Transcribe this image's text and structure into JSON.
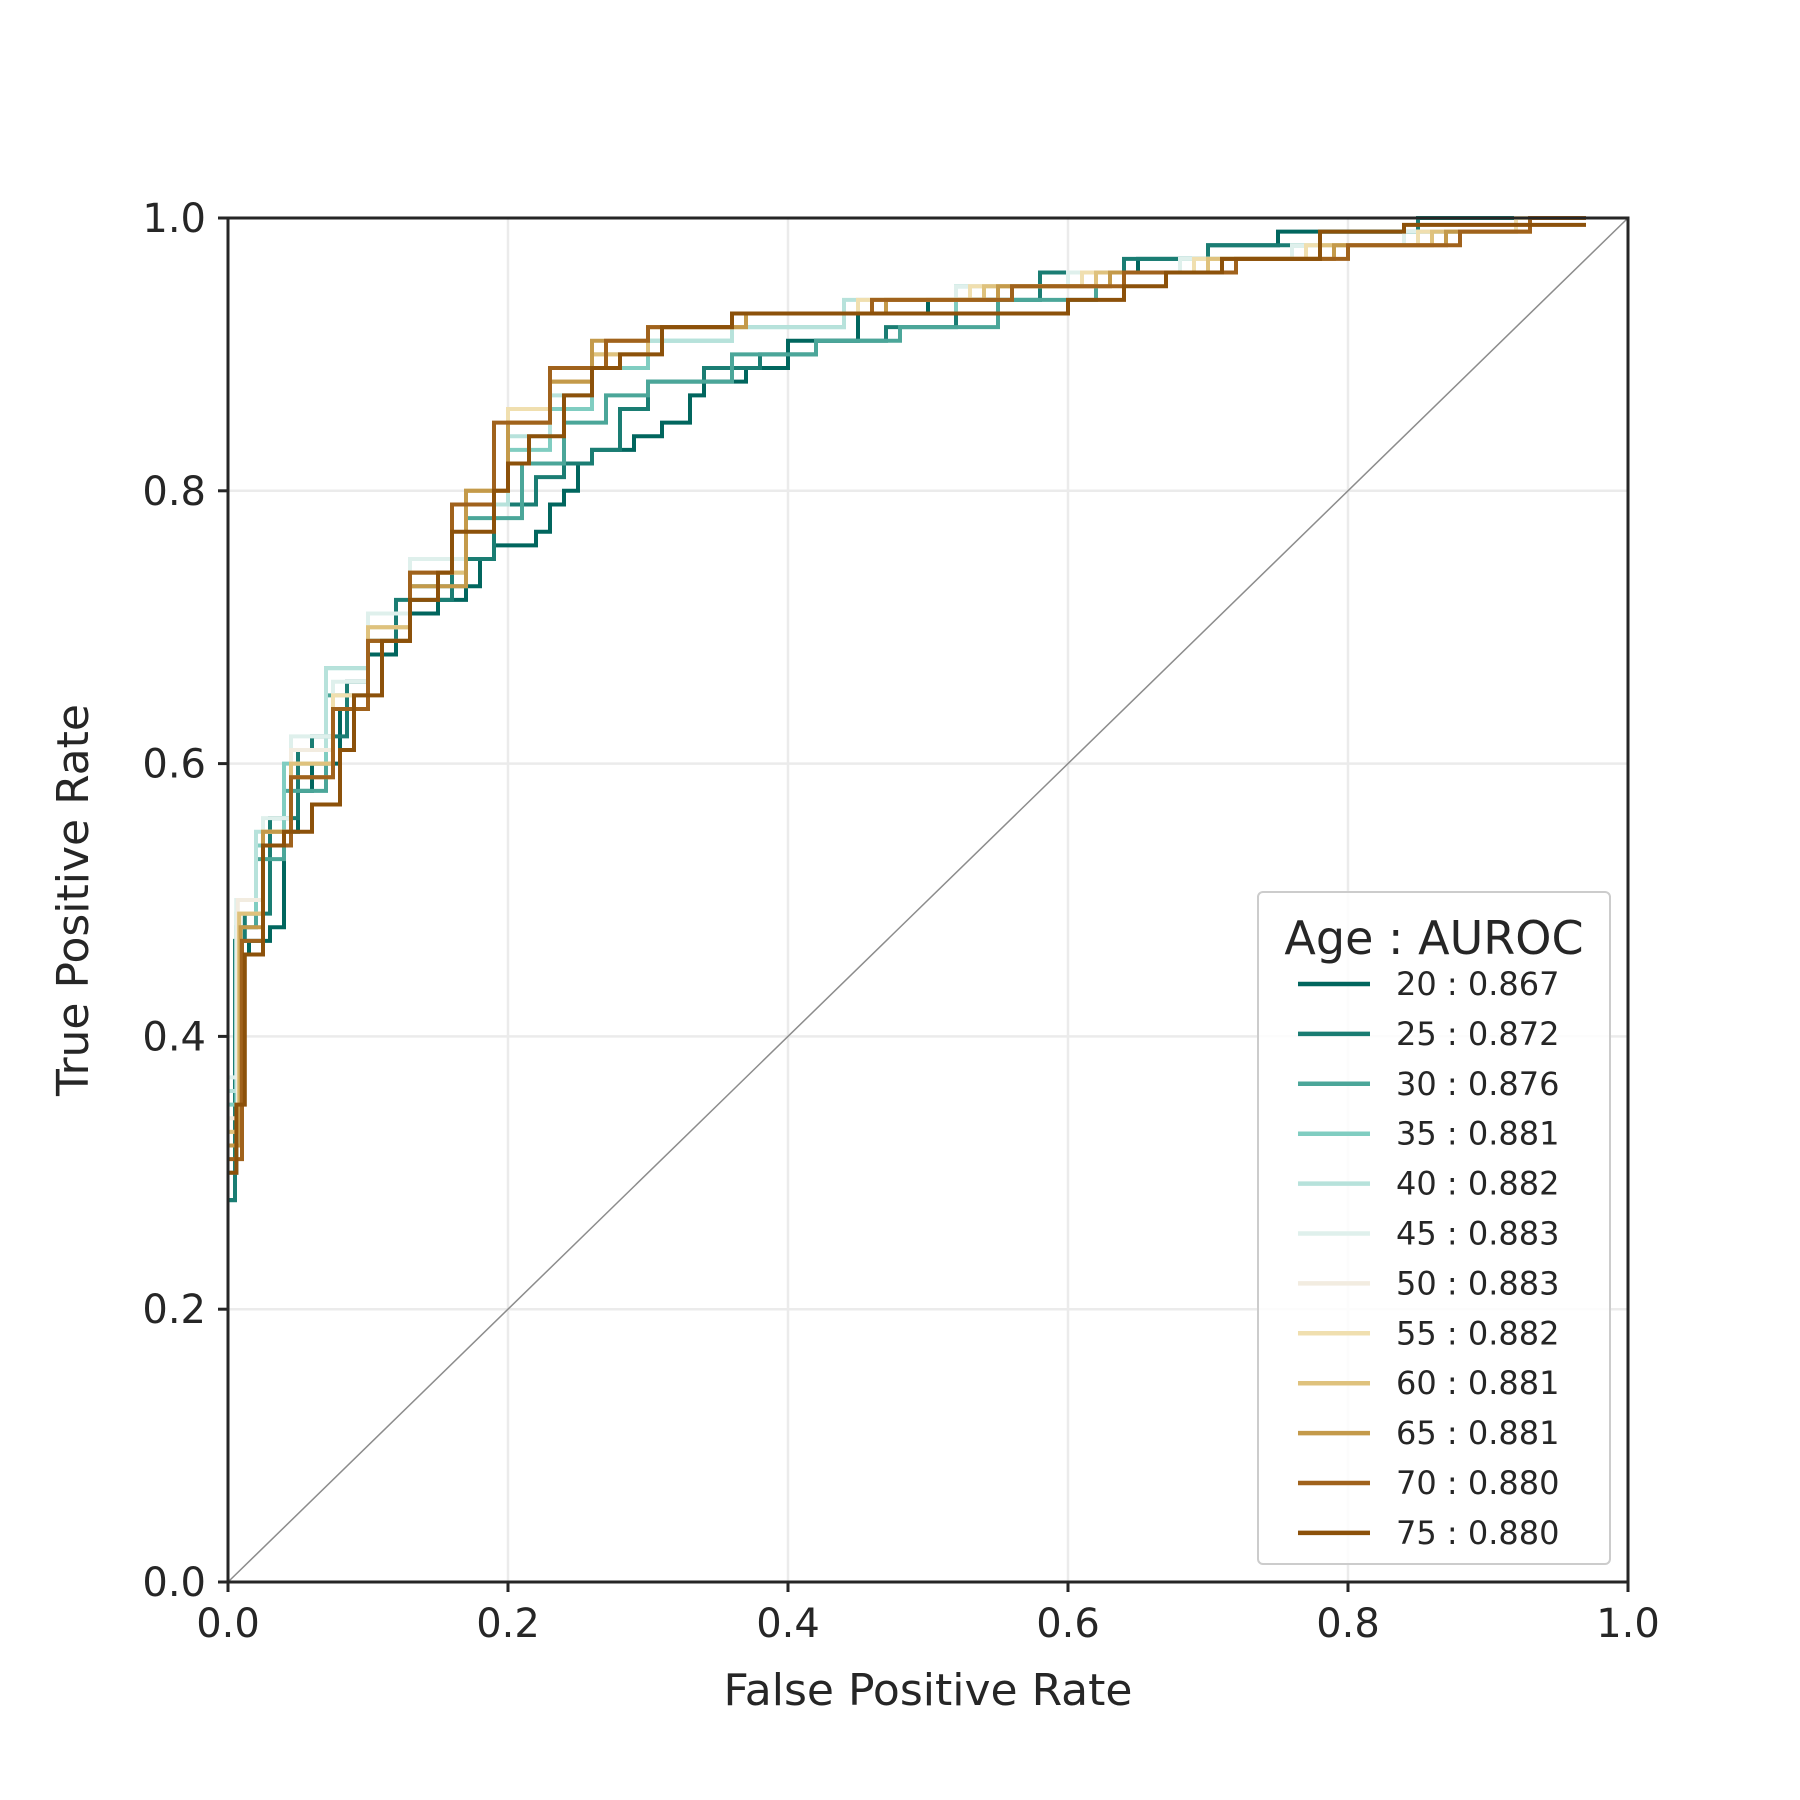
{
  "chart_data": {
    "type": "line",
    "title": "",
    "xlabel": "False Positive Rate",
    "ylabel": "True Positive Rate",
    "xlim": [
      0.0,
      1.0
    ],
    "ylim": [
      0.0,
      1.0
    ],
    "xticks": [
      "0.0",
      "0.2",
      "0.4",
      "0.6",
      "0.8",
      "1.0"
    ],
    "yticks": [
      "0.0",
      "0.2",
      "0.4",
      "0.6",
      "0.8",
      "1.0"
    ],
    "grid": true,
    "legend": {
      "title": "Age : AUROC",
      "placement": "lower-right"
    },
    "diagonal_reference": {
      "x": [
        0.0,
        1.0
      ],
      "y": [
        0.0,
        1.0
      ],
      "color": "#8c8c8c"
    },
    "series": [
      {
        "name": "20 : 0.867",
        "color": "#01665e",
        "x": [
          0,
          0.005,
          0.005,
          0.015,
          0.015,
          0.03,
          0.03,
          0.04,
          0.04,
          0.05,
          0.05,
          0.06,
          0.06,
          0.08,
          0.08,
          0.1,
          0.1,
          0.12,
          0.12,
          0.15,
          0.15,
          0.17,
          0.17,
          0.18,
          0.18,
          0.19,
          0.19,
          0.22,
          0.22,
          0.23,
          0.23,
          0.24,
          0.24,
          0.25,
          0.25,
          0.26,
          0.26,
          0.29,
          0.29,
          0.31,
          0.31,
          0.33,
          0.33,
          0.34,
          0.34,
          0.37,
          0.37,
          0.4,
          0.4,
          0.45,
          0.45,
          0.5,
          0.5,
          0.55,
          0.55,
          0.6,
          0.6,
          0.65,
          0.65,
          0.7,
          0.7,
          0.75,
          0.75,
          0.85,
          0.85,
          0.92,
          0.92,
          0.97
        ],
        "y": [
          0.28,
          0.28,
          0.46,
          0.46,
          0.47,
          0.47,
          0.48,
          0.48,
          0.55,
          0.55,
          0.58,
          0.58,
          0.6,
          0.6,
          0.64,
          0.64,
          0.68,
          0.68,
          0.71,
          0.71,
          0.72,
          0.72,
          0.73,
          0.73,
          0.75,
          0.75,
          0.76,
          0.76,
          0.77,
          0.77,
          0.79,
          0.79,
          0.8,
          0.8,
          0.82,
          0.82,
          0.83,
          0.83,
          0.84,
          0.84,
          0.85,
          0.85,
          0.87,
          0.87,
          0.88,
          0.88,
          0.89,
          0.89,
          0.91,
          0.91,
          0.93,
          0.93,
          0.94,
          0.94,
          0.95,
          0.95,
          0.96,
          0.96,
          0.97,
          0.97,
          0.98,
          0.98,
          0.99,
          0.99,
          1.0,
          1.0,
          1.0,
          1.0
        ]
      },
      {
        "name": "25 : 0.872",
        "color": "#1a7d73",
        "x": [
          0,
          0.005,
          0.005,
          0.012,
          0.012,
          0.03,
          0.03,
          0.05,
          0.05,
          0.06,
          0.06,
          0.085,
          0.085,
          0.1,
          0.1,
          0.12,
          0.12,
          0.16,
          0.16,
          0.19,
          0.19,
          0.22,
          0.22,
          0.24,
          0.24,
          0.26,
          0.26,
          0.28,
          0.28,
          0.3,
          0.3,
          0.34,
          0.34,
          0.38,
          0.38,
          0.42,
          0.42,
          0.47,
          0.47,
          0.52,
          0.52,
          0.58,
          0.58,
          0.64,
          0.64,
          0.7,
          0.7,
          0.78,
          0.78,
          0.85,
          0.85,
          0.92,
          0.92,
          0.97
        ],
        "y": [
          0.28,
          0.28,
          0.47,
          0.47,
          0.49,
          0.49,
          0.56,
          0.56,
          0.61,
          0.61,
          0.62,
          0.62,
          0.66,
          0.66,
          0.69,
          0.69,
          0.72,
          0.72,
          0.75,
          0.75,
          0.79,
          0.79,
          0.81,
          0.81,
          0.82,
          0.82,
          0.83,
          0.83,
          0.86,
          0.86,
          0.88,
          0.88,
          0.89,
          0.89,
          0.9,
          0.9,
          0.91,
          0.91,
          0.92,
          0.92,
          0.94,
          0.94,
          0.96,
          0.96,
          0.97,
          0.97,
          0.98,
          0.98,
          0.99,
          0.99,
          1.0,
          1.0,
          1.0,
          1.0
        ]
      },
      {
        "name": "30 : 0.876",
        "color": "#4ba699",
        "x": [
          0,
          0.006,
          0.006,
          0.02,
          0.02,
          0.04,
          0.04,
          0.07,
          0.07,
          0.1,
          0.1,
          0.13,
          0.13,
          0.17,
          0.17,
          0.21,
          0.21,
          0.24,
          0.24,
          0.27,
          0.27,
          0.3,
          0.3,
          0.36,
          0.36,
          0.42,
          0.42,
          0.48,
          0.48,
          0.55,
          0.55,
          0.62,
          0.62,
          0.68,
          0.68,
          0.76,
          0.76,
          0.84,
          0.84,
          0.92,
          0.92,
          0.97
        ],
        "y": [
          0.3,
          0.3,
          0.48,
          0.48,
          0.53,
          0.53,
          0.58,
          0.58,
          0.65,
          0.65,
          0.69,
          0.69,
          0.73,
          0.73,
          0.78,
          0.78,
          0.82,
          0.82,
          0.85,
          0.85,
          0.87,
          0.87,
          0.88,
          0.88,
          0.9,
          0.9,
          0.91,
          0.91,
          0.92,
          0.92,
          0.94,
          0.94,
          0.96,
          0.96,
          0.97,
          0.97,
          0.98,
          0.98,
          0.99,
          0.99,
          1.0,
          1.0
        ]
      },
      {
        "name": "35 : 0.881",
        "color": "#80cdc1",
        "x": [
          0,
          0.006,
          0.006,
          0.02,
          0.02,
          0.04,
          0.04,
          0.07,
          0.07,
          0.1,
          0.1,
          0.13,
          0.13,
          0.17,
          0.17,
          0.2,
          0.2,
          0.23,
          0.23,
          0.26,
          0.26,
          0.3,
          0.3,
          0.36,
          0.36,
          0.44,
          0.44,
          0.52,
          0.52,
          0.6,
          0.6,
          0.68,
          0.68,
          0.76,
          0.76,
          0.84,
          0.84,
          0.92,
          0.92,
          0.97
        ],
        "y": [
          0.35,
          0.35,
          0.49,
          0.49,
          0.54,
          0.54,
          0.6,
          0.6,
          0.67,
          0.67,
          0.7,
          0.7,
          0.74,
          0.74,
          0.79,
          0.79,
          0.83,
          0.83,
          0.86,
          0.86,
          0.89,
          0.89,
          0.91,
          0.91,
          0.92,
          0.92,
          0.93,
          0.93,
          0.95,
          0.95,
          0.96,
          0.96,
          0.97,
          0.97,
          0.98,
          0.98,
          0.99,
          0.99,
          1.0,
          1.0
        ]
      },
      {
        "name": "40 : 0.882",
        "color": "#b7e2db",
        "x": [
          0,
          0.006,
          0.006,
          0.02,
          0.02,
          0.045,
          0.045,
          0.07,
          0.07,
          0.1,
          0.1,
          0.13,
          0.13,
          0.16,
          0.16,
          0.2,
          0.2,
          0.23,
          0.23,
          0.26,
          0.26,
          0.3,
          0.3,
          0.36,
          0.36,
          0.44,
          0.44,
          0.52,
          0.52,
          0.6,
          0.6,
          0.68,
          0.68,
          0.76,
          0.76,
          0.84,
          0.84,
          0.92,
          0.92,
          0.97
        ],
        "y": [
          0.36,
          0.36,
          0.5,
          0.5,
          0.55,
          0.55,
          0.61,
          0.61,
          0.67,
          0.67,
          0.71,
          0.71,
          0.75,
          0.75,
          0.79,
          0.79,
          0.84,
          0.84,
          0.87,
          0.87,
          0.9,
          0.9,
          0.91,
          0.91,
          0.92,
          0.92,
          0.94,
          0.94,
          0.95,
          0.95,
          0.96,
          0.96,
          0.97,
          0.97,
          0.98,
          0.98,
          0.99,
          0.99,
          1.0,
          1.0
        ]
      },
      {
        "name": "45 : 0.883",
        "color": "#dff0ec",
        "x": [
          0,
          0.006,
          0.006,
          0.025,
          0.025,
          0.045,
          0.045,
          0.075,
          0.075,
          0.1,
          0.1,
          0.13,
          0.13,
          0.17,
          0.17,
          0.2,
          0.2,
          0.23,
          0.23,
          0.26,
          0.26,
          0.3,
          0.3,
          0.37,
          0.37,
          0.45,
          0.45,
          0.52,
          0.52,
          0.6,
          0.6,
          0.68,
          0.68,
          0.76,
          0.76,
          0.84,
          0.84,
          0.92,
          0.92,
          0.97
        ],
        "y": [
          0.37,
          0.37,
          0.5,
          0.5,
          0.56,
          0.56,
          0.62,
          0.62,
          0.66,
          0.66,
          0.71,
          0.71,
          0.75,
          0.75,
          0.8,
          0.8,
          0.85,
          0.85,
          0.88,
          0.88,
          0.9,
          0.9,
          0.92,
          0.92,
          0.93,
          0.93,
          0.94,
          0.94,
          0.95,
          0.95,
          0.96,
          0.96,
          0.97,
          0.97,
          0.98,
          0.98,
          0.99,
          0.99,
          1.0,
          1.0
        ]
      },
      {
        "name": "50 : 0.883",
        "color": "#f2ece0",
        "x": [
          0,
          0.007,
          0.007,
          0.025,
          0.025,
          0.045,
          0.045,
          0.075,
          0.075,
          0.1,
          0.1,
          0.13,
          0.13,
          0.17,
          0.17,
          0.2,
          0.2,
          0.23,
          0.23,
          0.26,
          0.26,
          0.3,
          0.3,
          0.37,
          0.37,
          0.45,
          0.45,
          0.53,
          0.53,
          0.61,
          0.61,
          0.69,
          0.69,
          0.77,
          0.77,
          0.85,
          0.85,
          0.92,
          0.92,
          0.97
        ],
        "y": [
          0.34,
          0.34,
          0.5,
          0.5,
          0.55,
          0.55,
          0.61,
          0.61,
          0.65,
          0.65,
          0.7,
          0.7,
          0.74,
          0.74,
          0.8,
          0.8,
          0.86,
          0.86,
          0.88,
          0.88,
          0.9,
          0.9,
          0.92,
          0.92,
          0.93,
          0.93,
          0.94,
          0.94,
          0.95,
          0.95,
          0.96,
          0.96,
          0.97,
          0.97,
          0.98,
          0.98,
          0.99,
          0.99,
          1.0,
          1.0
        ]
      },
      {
        "name": "55 : 0.882",
        "color": "#f0dfaf",
        "x": [
          0,
          0.008,
          0.008,
          0.025,
          0.025,
          0.045,
          0.045,
          0.075,
          0.075,
          0.1,
          0.1,
          0.13,
          0.13,
          0.17,
          0.17,
          0.2,
          0.2,
          0.23,
          0.23,
          0.26,
          0.26,
          0.3,
          0.3,
          0.37,
          0.37,
          0.45,
          0.45,
          0.53,
          0.53,
          0.61,
          0.61,
          0.69,
          0.69,
          0.77,
          0.77,
          0.85,
          0.85,
          0.92,
          0.92,
          0.97
        ],
        "y": [
          0.33,
          0.33,
          0.49,
          0.49,
          0.55,
          0.55,
          0.6,
          0.6,
          0.65,
          0.65,
          0.7,
          0.7,
          0.74,
          0.74,
          0.8,
          0.8,
          0.86,
          0.86,
          0.88,
          0.88,
          0.9,
          0.9,
          0.92,
          0.92,
          0.93,
          0.93,
          0.94,
          0.94,
          0.95,
          0.95,
          0.96,
          0.96,
          0.97,
          0.97,
          0.98,
          0.98,
          0.99,
          0.99,
          1.0,
          1.0
        ]
      },
      {
        "name": "60 : 0.881",
        "color": "#dfc27d",
        "x": [
          0,
          0.008,
          0.008,
          0.025,
          0.025,
          0.045,
          0.045,
          0.075,
          0.075,
          0.1,
          0.1,
          0.13,
          0.13,
          0.17,
          0.17,
          0.2,
          0.2,
          0.23,
          0.23,
          0.26,
          0.26,
          0.3,
          0.3,
          0.37,
          0.37,
          0.46,
          0.46,
          0.54,
          0.54,
          0.62,
          0.62,
          0.7,
          0.7,
          0.78,
          0.78,
          0.86,
          0.86,
          0.93,
          0.93,
          0.97
        ],
        "y": [
          0.33,
          0.33,
          0.49,
          0.49,
          0.55,
          0.55,
          0.6,
          0.6,
          0.64,
          0.64,
          0.7,
          0.7,
          0.74,
          0.74,
          0.8,
          0.8,
          0.85,
          0.85,
          0.88,
          0.88,
          0.9,
          0.9,
          0.92,
          0.92,
          0.93,
          0.93,
          0.94,
          0.94,
          0.95,
          0.95,
          0.96,
          0.96,
          0.97,
          0.97,
          0.98,
          0.98,
          0.99,
          0.99,
          1.0,
          1.0
        ]
      },
      {
        "name": "65 : 0.881",
        "color": "#c49a4a",
        "x": [
          0,
          0.009,
          0.009,
          0.025,
          0.025,
          0.045,
          0.045,
          0.075,
          0.075,
          0.1,
          0.1,
          0.13,
          0.13,
          0.17,
          0.17,
          0.2,
          0.2,
          0.23,
          0.23,
          0.26,
          0.26,
          0.3,
          0.3,
          0.37,
          0.37,
          0.47,
          0.47,
          0.55,
          0.55,
          0.63,
          0.63,
          0.71,
          0.71,
          0.79,
          0.79,
          0.87,
          0.87,
          0.93,
          0.93,
          0.97
        ],
        "y": [
          0.32,
          0.32,
          0.48,
          0.48,
          0.55,
          0.55,
          0.59,
          0.59,
          0.64,
          0.64,
          0.69,
          0.69,
          0.73,
          0.73,
          0.8,
          0.8,
          0.85,
          0.85,
          0.88,
          0.88,
          0.91,
          0.91,
          0.92,
          0.92,
          0.93,
          0.93,
          0.94,
          0.94,
          0.95,
          0.95,
          0.96,
          0.96,
          0.97,
          0.97,
          0.98,
          0.98,
          0.99,
          0.99,
          1.0,
          1.0
        ]
      },
      {
        "name": "70 : 0.880",
        "color": "#a0621c",
        "x": [
          0,
          0.01,
          0.01,
          0.025,
          0.025,
          0.045,
          0.045,
          0.075,
          0.075,
          0.1,
          0.1,
          0.13,
          0.13,
          0.16,
          0.16,
          0.19,
          0.19,
          0.23,
          0.23,
          0.27,
          0.27,
          0.3,
          0.3,
          0.36,
          0.36,
          0.46,
          0.46,
          0.56,
          0.56,
          0.64,
          0.64,
          0.72,
          0.72,
          0.8,
          0.8,
          0.88,
          0.88,
          0.93,
          0.93,
          0.97
        ],
        "y": [
          0.31,
          0.31,
          0.47,
          0.47,
          0.54,
          0.54,
          0.59,
          0.59,
          0.64,
          0.64,
          0.69,
          0.69,
          0.74,
          0.74,
          0.79,
          0.79,
          0.85,
          0.85,
          0.89,
          0.89,
          0.91,
          0.91,
          0.92,
          0.92,
          0.93,
          0.93,
          0.94,
          0.94,
          0.95,
          0.95,
          0.96,
          0.96,
          0.97,
          0.97,
          0.98,
          0.98,
          0.99,
          0.99,
          1.0,
          1.0
        ]
      },
      {
        "name": "75 : 0.880",
        "color": "#8c510a",
        "x": [
          0,
          0.006,
          0.006,
          0.012,
          0.012,
          0.025,
          0.025,
          0.04,
          0.04,
          0.06,
          0.06,
          0.08,
          0.08,
          0.09,
          0.09,
          0.11,
          0.11,
          0.13,
          0.13,
          0.15,
          0.15,
          0.16,
          0.16,
          0.19,
          0.19,
          0.2,
          0.2,
          0.215,
          0.215,
          0.24,
          0.24,
          0.26,
          0.26,
          0.28,
          0.28,
          0.31,
          0.31,
          0.36,
          0.36,
          0.45,
          0.45,
          0.55,
          0.55,
          0.6,
          0.6,
          0.64,
          0.64,
          0.67,
          0.67,
          0.71,
          0.71,
          0.78,
          0.78,
          0.84,
          0.84,
          0.97
        ],
        "y": [
          0.3,
          0.3,
          0.35,
          0.35,
          0.46,
          0.46,
          0.54,
          0.54,
          0.55,
          0.55,
          0.57,
          0.57,
          0.61,
          0.61,
          0.65,
          0.65,
          0.69,
          0.69,
          0.72,
          0.72,
          0.74,
          0.74,
          0.77,
          0.77,
          0.8,
          0.8,
          0.82,
          0.82,
          0.84,
          0.84,
          0.87,
          0.87,
          0.89,
          0.89,
          0.9,
          0.9,
          0.92,
          0.92,
          0.93,
          0.93,
          0.93,
          0.93,
          0.93,
          0.93,
          0.94,
          0.94,
          0.95,
          0.95,
          0.96,
          0.96,
          0.97,
          0.97,
          0.99,
          0.99,
          0.995,
          0.995
        ]
      }
    ]
  }
}
